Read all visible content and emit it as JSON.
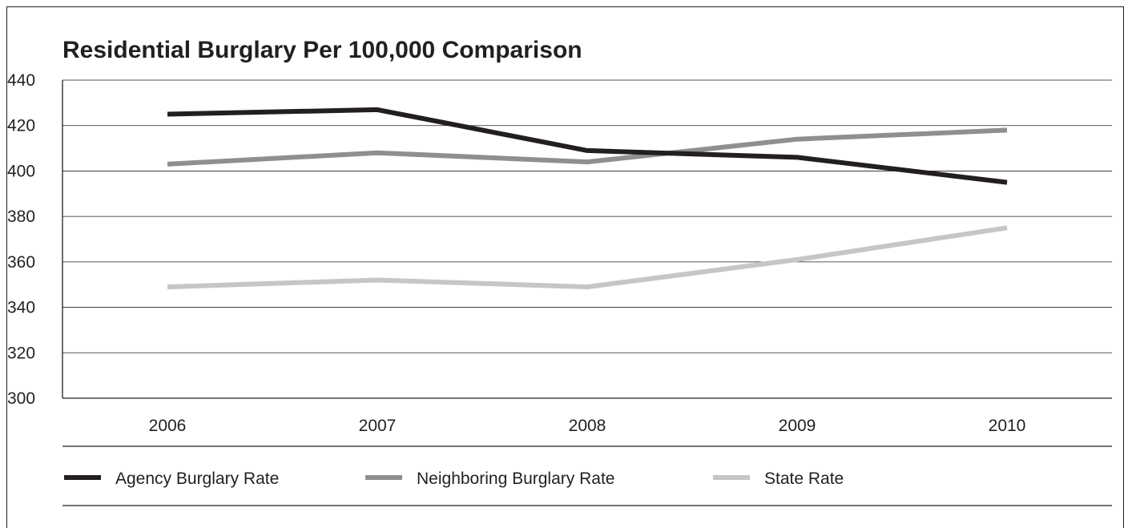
{
  "chart_data": {
    "type": "line",
    "title": "Residential Burglary Per 100,000 Comparison",
    "xlabel": "",
    "ylabel": "",
    "categories": [
      "2006",
      "2007",
      "2008",
      "2009",
      "2010"
    ],
    "ylim": [
      300,
      440
    ],
    "yticks": [
      "440",
      "420",
      "400",
      "380",
      "360",
      "340",
      "320",
      "300"
    ],
    "grid": true,
    "legend_position": "bottom",
    "series": [
      {
        "name": "Agency Burglary Rate",
        "color": "#231f20",
        "values": [
          425,
          427,
          409,
          406,
          395
        ]
      },
      {
        "name": "Neighboring Burglary Rate",
        "color": "#8f8f91",
        "values": [
          403,
          408,
          404,
          414,
          418
        ]
      },
      {
        "name": "State Rate",
        "color": "#c6c6c8",
        "values": [
          349,
          352,
          349,
          361,
          375
        ]
      }
    ]
  }
}
